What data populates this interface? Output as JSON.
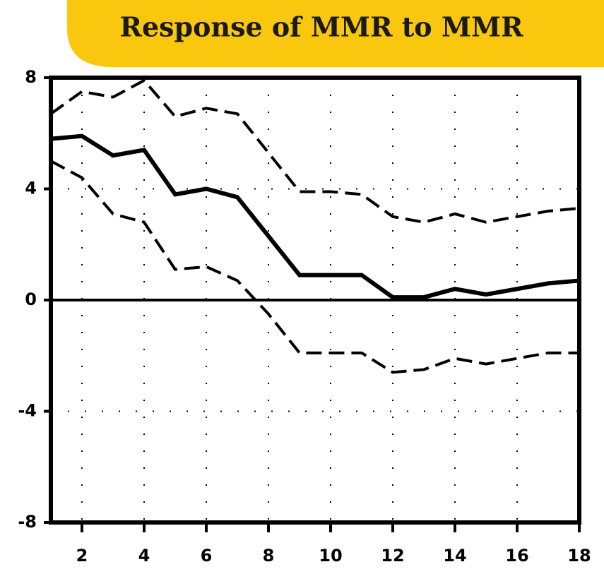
{
  "chart_data": {
    "type": "line",
    "title": "Response of MMR to MMR",
    "x": [
      1,
      2,
      3,
      4,
      5,
      6,
      7,
      8,
      9,
      10,
      11,
      12,
      13,
      14,
      15,
      16,
      17,
      18
    ],
    "series": [
      {
        "color": "#000000",
        "line_style": "solid",
        "values": [
          5.8,
          5.9,
          5.2,
          5.4,
          3.8,
          4.0,
          3.7,
          2.3,
          0.9,
          0.9,
          0.9,
          0.1,
          0.1,
          0.4,
          0.2,
          0.4,
          0.6,
          0.7
        ]
      },
      {
        "color": "#000000",
        "line_style": "dashed",
        "values": [
          6.7,
          7.5,
          7.3,
          7.9,
          6.6,
          6.9,
          6.7,
          5.3,
          3.9,
          3.9,
          3.8,
          3.0,
          2.8,
          3.1,
          2.8,
          3.0,
          3.2,
          3.3
        ]
      },
      {
        "color": "#000000",
        "line_style": "dashed",
        "values": [
          5.0,
          4.4,
          3.1,
          2.8,
          1.1,
          1.2,
          0.7,
          -0.5,
          -1.9,
          -1.9,
          -1.9,
          -2.6,
          -2.5,
          -2.1,
          -2.3,
          -2.1,
          -1.9,
          -1.9
        ]
      }
    ],
    "xlim": [
      1,
      18
    ],
    "xticks": [
      2,
      4,
      6,
      8,
      10,
      12,
      14,
      16,
      18
    ],
    "ylim": [
      -8,
      8
    ],
    "yticks": [
      -8,
      -4,
      0,
      4,
      8
    ],
    "grid": true,
    "zero_line": true
  }
}
